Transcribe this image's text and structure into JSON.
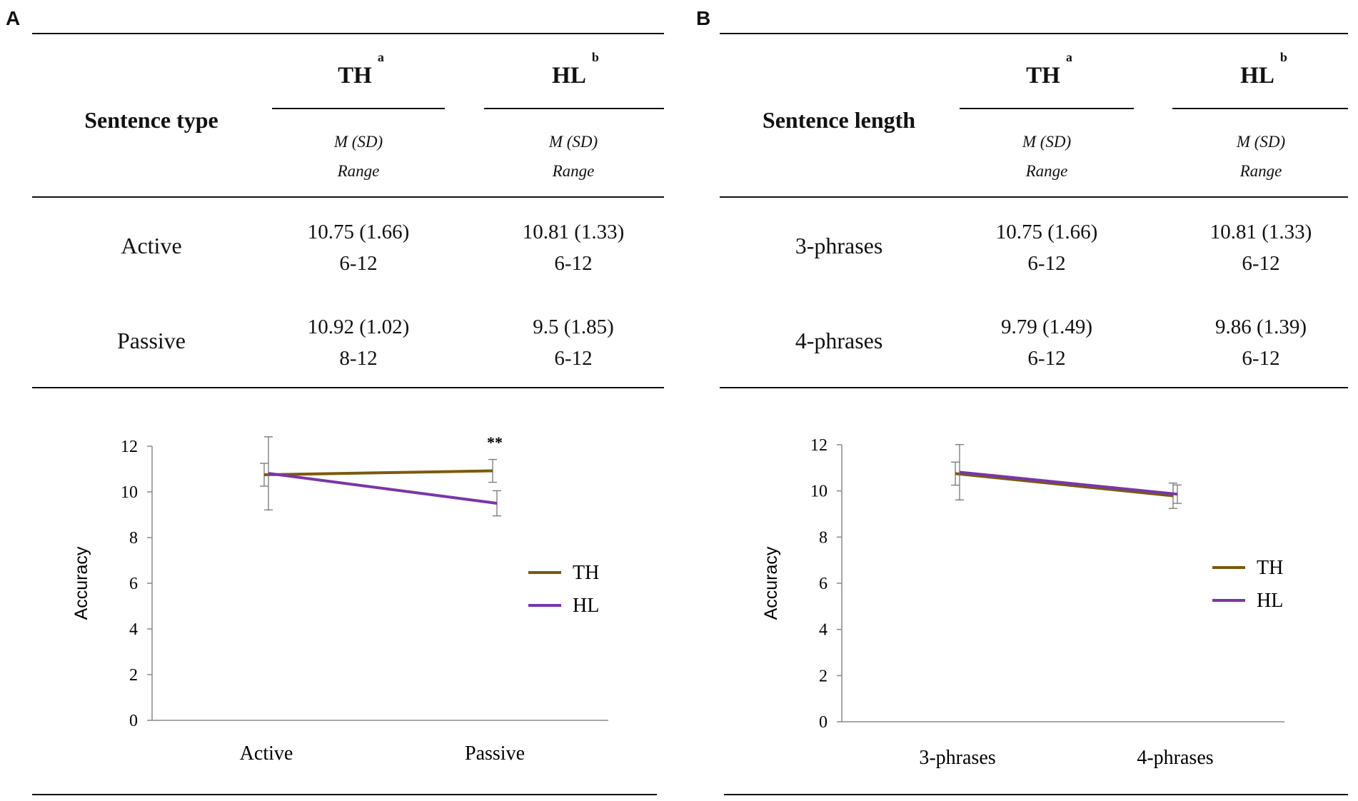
{
  "panels": [
    {
      "letter": "A",
      "row_header": "Sentence type",
      "columns": [
        {
          "label": "TH",
          "sup": "a",
          "sub1": "M (SD)",
          "sub2": "Range"
        },
        {
          "label": "HL",
          "sup": "b",
          "sub1": "M (SD)",
          "sub2": "Range"
        }
      ],
      "rows": [
        {
          "label": "Active",
          "cells": [
            {
              "stat": "10.75 (1.66)",
              "range": "6-12"
            },
            {
              "stat": "10.81 (1.33)",
              "range": "6-12"
            }
          ]
        },
        {
          "label": "Passive",
          "cells": [
            {
              "stat": "10.92 (1.02)",
              "range": "8-12"
            },
            {
              "stat": "9.5 (1.85)",
              "range": "6-12"
            }
          ]
        }
      ]
    },
    {
      "letter": "B",
      "row_header": "Sentence length",
      "columns": [
        {
          "label": "TH",
          "sup": "a",
          "sub1": "M (SD)",
          "sub2": "Range"
        },
        {
          "label": "HL",
          "sup": "b",
          "sub1": "M (SD)",
          "sub2": "Range"
        }
      ],
      "rows": [
        {
          "label": "3-phrases",
          "cells": [
            {
              "stat": "10.75 (1.66)",
              "range": "6-12"
            },
            {
              "stat": "10.81 (1.33)",
              "range": "6-12"
            }
          ]
        },
        {
          "label": "4-phrases",
          "cells": [
            {
              "stat": "9.79 (1.49)",
              "range": "6-12"
            },
            {
              "stat": "9.86 (1.39)",
              "range": "6-12"
            }
          ]
        }
      ]
    }
  ],
  "chart_data": [
    {
      "type": "line",
      "categories": [
        "Active",
        "Passive"
      ],
      "series": [
        {
          "name": "TH",
          "color": "#7a5a0c",
          "values": [
            10.75,
            10.92
          ],
          "errors": [
            0.5,
            0.5
          ]
        },
        {
          "name": "HL",
          "color": "#7a35a8",
          "values": [
            10.81,
            9.5
          ],
          "errors": [
            1.6,
            0.55
          ]
        }
      ],
      "ylabel": "Accuracy",
      "xlabel": "",
      "ylim": [
        0,
        12
      ],
      "yticks": [
        0,
        2,
        4,
        6,
        8,
        10,
        12
      ],
      "annotations": [
        {
          "category": "Passive",
          "text": "**"
        }
      ],
      "legend": "right"
    },
    {
      "type": "line",
      "categories": [
        "3-phrases",
        "4-phrases"
      ],
      "series": [
        {
          "name": "TH",
          "color": "#7a5a0c",
          "values": [
            10.75,
            9.79
          ],
          "errors": [
            0.5,
            0.55
          ]
        },
        {
          "name": "HL",
          "color": "#7a35a8",
          "values": [
            10.81,
            9.86
          ],
          "errors": [
            1.2,
            0.4
          ]
        }
      ],
      "ylabel": "Accuracy",
      "xlabel": "",
      "ylim": [
        0,
        12
      ],
      "yticks": [
        0,
        2,
        4,
        6,
        8,
        10,
        12
      ],
      "annotations": [],
      "legend": "right"
    }
  ]
}
